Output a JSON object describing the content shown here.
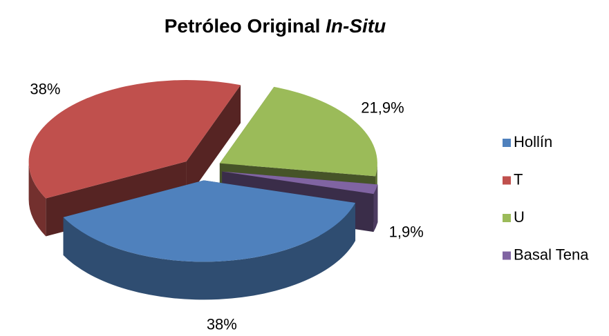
{
  "chart_data": {
    "type": "pie3d",
    "title": [
      "Petróleo Original",
      "In-Situ"
    ],
    "categories": [
      "Hollín",
      "T",
      "U",
      "Basal Tena"
    ],
    "values": [
      38,
      38,
      21.9,
      1.9
    ],
    "value_labels": [
      "38%",
      "38%",
      "21,9%",
      "1,9%"
    ],
    "colors": [
      "#4f81bd",
      "#c0504d",
      "#9bbb59",
      "#8064a2"
    ],
    "legend": "right"
  }
}
